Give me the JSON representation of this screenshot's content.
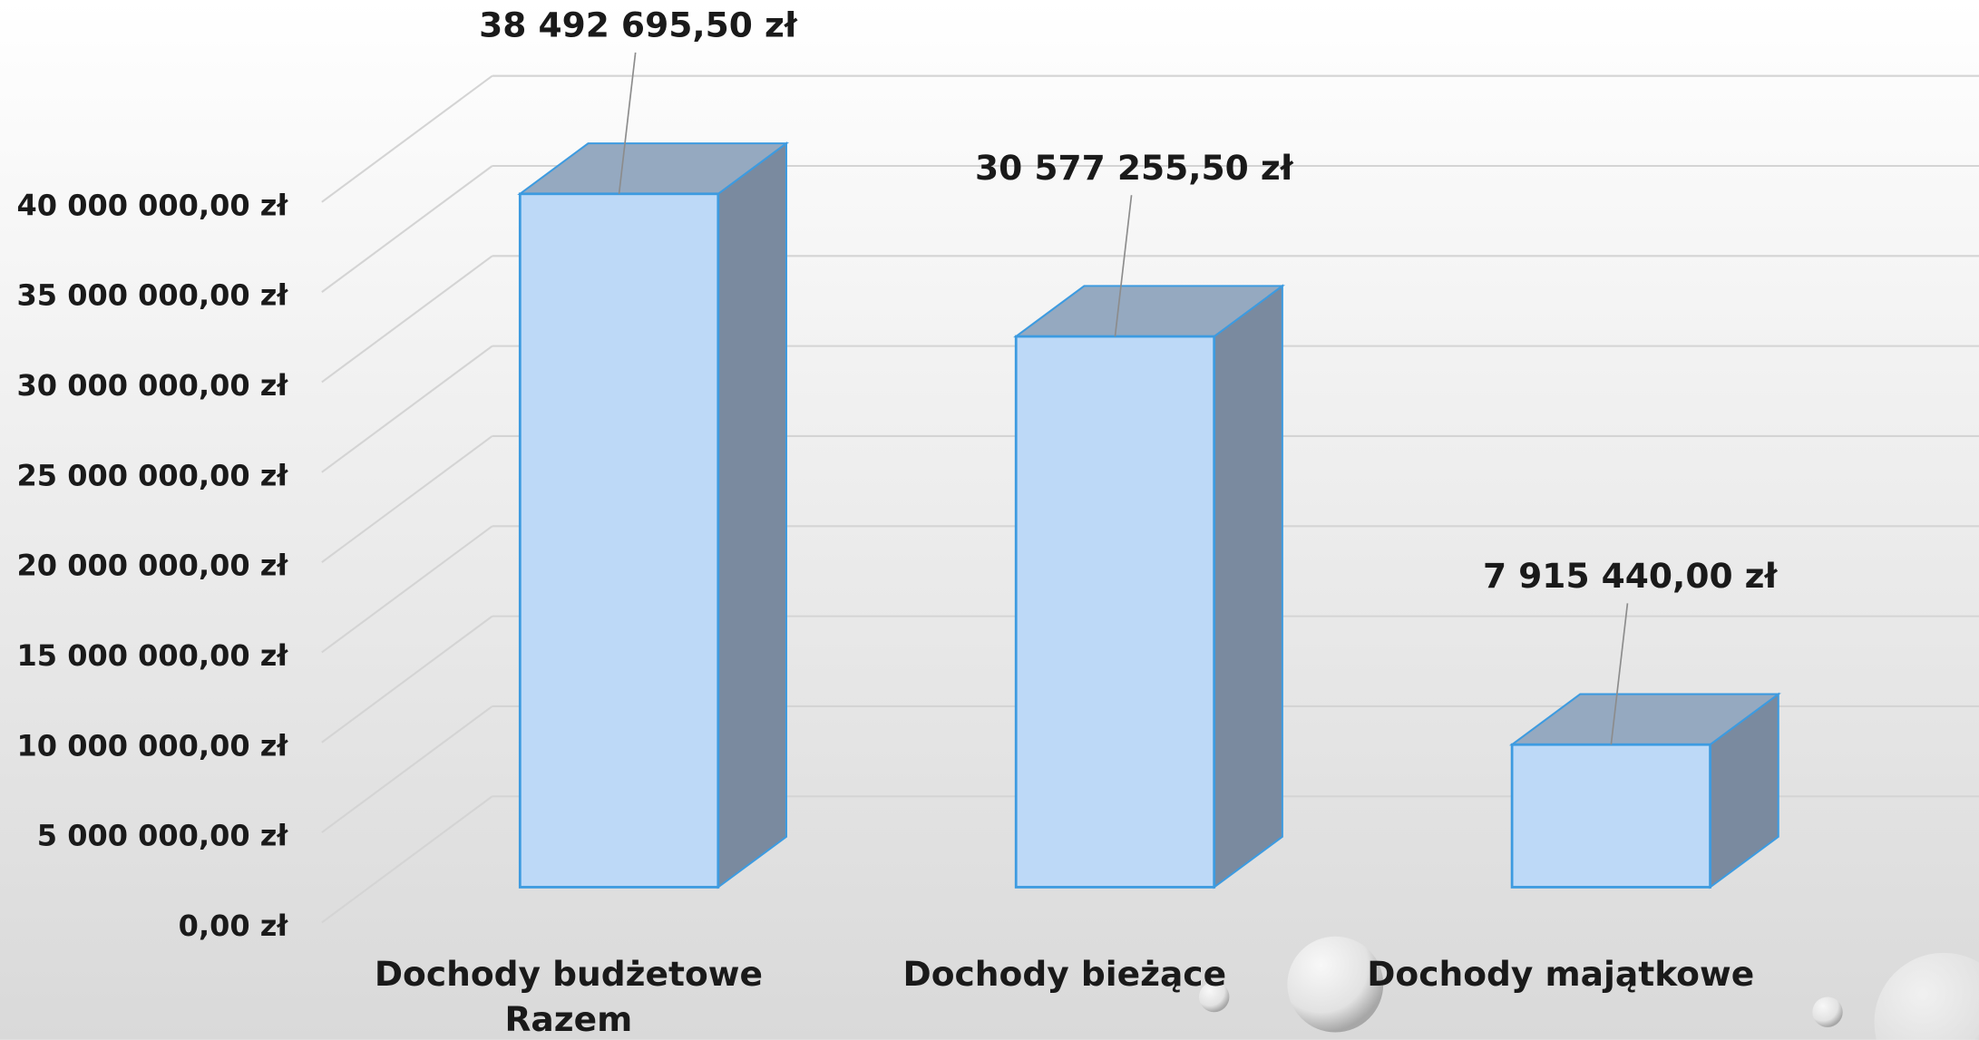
{
  "chart_data": {
    "type": "bar3d",
    "categories": [
      "Dochody budżetowe Razem",
      "Dochody bieżące",
      "Dochody majątkowe"
    ],
    "values": [
      38492695.5,
      30577255.5,
      7915440
    ],
    "value_labels": [
      "38 492 695,50 zł",
      "30 577 255,50 zł",
      "7 915 440,00 zł"
    ],
    "ylim": [
      0,
      40000000
    ],
    "yticks": [
      {
        "value": 0,
        "label": "0,00 zł"
      },
      {
        "value": 5000000,
        "label": "5 000 000,00 zł"
      },
      {
        "value": 10000000,
        "label": "10 000 000,00 zł"
      },
      {
        "value": 15000000,
        "label": "15 000 000,00 zł"
      },
      {
        "value": 20000000,
        "label": "20 000 000,00 zł"
      },
      {
        "value": 25000000,
        "label": "25 000 000,00 zł"
      },
      {
        "value": 30000000,
        "label": "30 000 000,00 zł"
      },
      {
        "value": 35000000,
        "label": "35 000 000,00 zł"
      },
      {
        "value": 40000000,
        "label": "40 000 000,00 zł"
      }
    ],
    "color": "#bdd9f7",
    "grid": true
  }
}
